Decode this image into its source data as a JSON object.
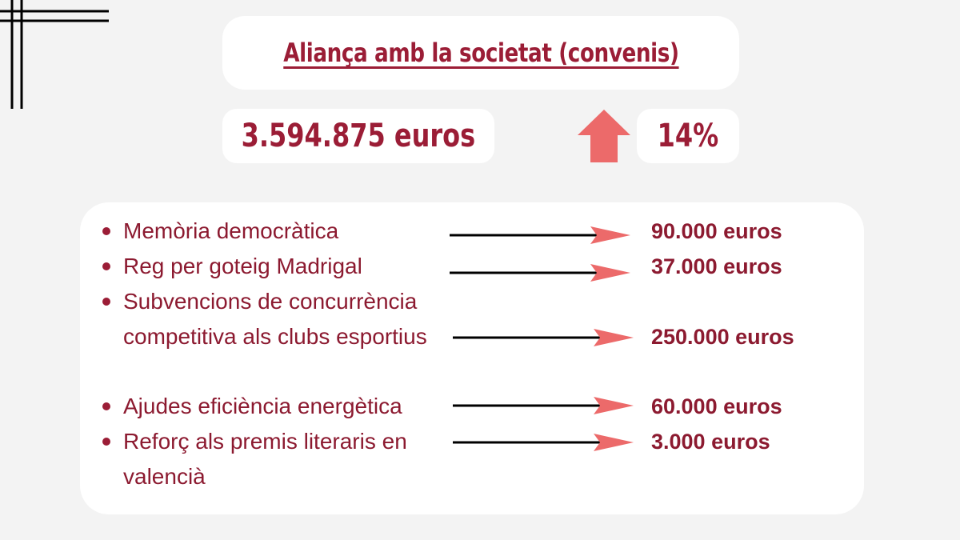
{
  "title": "Aliança amb la societat (convenis)",
  "total": "3.594.875 euros",
  "increase_percent": "14%",
  "colors": {
    "accent": "#9b1d36",
    "arrow": "#ec6a6a",
    "background": "#f3f3f3",
    "card": "#ffffff"
  },
  "items": [
    {
      "label": "Memòria democràtica",
      "amount": "90.000 euros"
    },
    {
      "label": "Reg per goteig Madrigal",
      "amount": "37.000 euros"
    },
    {
      "label": "Subvencions de concurrència competitiva als clubs esportius",
      "amount": "250.000 euros"
    },
    {
      "label": "Ajudes eficiència energètica",
      "amount": "60.000 euros"
    },
    {
      "label": "Reforç als premis literaris en valencià",
      "amount": "3.000 euros"
    }
  ]
}
